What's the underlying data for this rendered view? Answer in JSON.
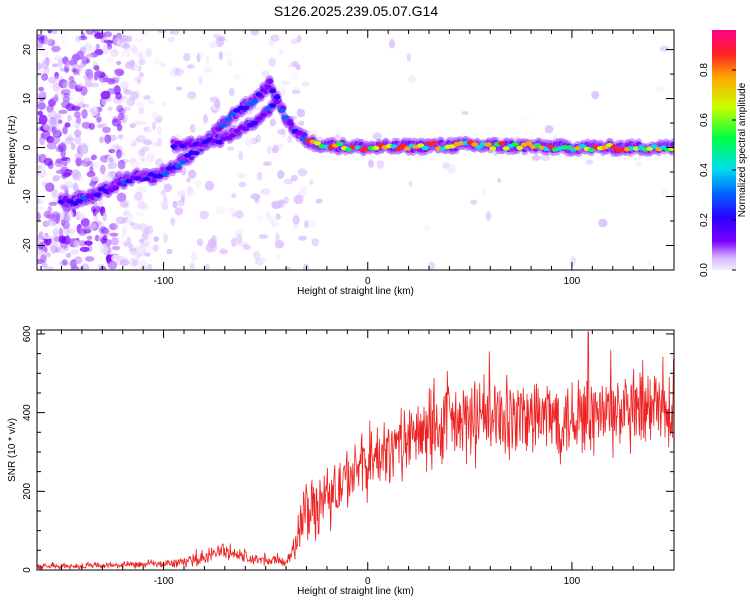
{
  "title": "S126.2025.239.05.07.G14",
  "colors": {
    "snr_line": "#ee2222",
    "axis": "#000000",
    "colormap": [
      "#f3eaff",
      "#d9b8ff",
      "#a85cff",
      "#7a00ff",
      "#2a00ff",
      "#0066ff",
      "#00ddee",
      "#00ff44",
      "#ccff00",
      "#ffaa00",
      "#ff2222",
      "#ff0088"
    ]
  },
  "chart_data": [
    {
      "type": "heatmap",
      "title": "",
      "xlabel": "Height of straight line (km)",
      "ylabel": "Frequency (Hz)",
      "xlim": [
        -162,
        150
      ],
      "ylim": [
        -25,
        24
      ],
      "xticks": [
        -100,
        0,
        100
      ],
      "yticks": [
        -20,
        -10,
        0,
        10,
        20
      ],
      "colorbar": {
        "label": "Normalized spectral amplitude",
        "range": [
          0,
          0.96
        ],
        "ticks": [
          "0.0",
          "0.2",
          "0.4",
          "0.6",
          "0.8"
        ]
      },
      "ridge": {
        "description": "dominant spectral line (frequency in Hz vs height in km)",
        "points": [
          {
            "x": -145,
            "y": -11
          },
          {
            "x": -135,
            "y": -10
          },
          {
            "x": -125,
            "y": -8
          },
          {
            "x": -115,
            "y": -6
          },
          {
            "x": -105,
            "y": -6
          },
          {
            "x": -95,
            "y": -4
          },
          {
            "x": -85,
            "y": -1
          },
          {
            "x": -75,
            "y": 3
          },
          {
            "x": -65,
            "y": 7
          },
          {
            "x": -55,
            "y": 10
          },
          {
            "x": -48,
            "y": 13
          },
          {
            "x": -40,
            "y": 6
          },
          {
            "x": -35,
            "y": 3
          },
          {
            "x": -28,
            "y": 1
          },
          {
            "x": -20,
            "y": 0.5
          },
          {
            "x": 0,
            "y": 0
          },
          {
            "x": 50,
            "y": 0.5
          },
          {
            "x": 100,
            "y": 0
          },
          {
            "x": 150,
            "y": 0
          }
        ]
      },
      "secondary_branch": [
        {
          "x": -95,
          "y": 0.5
        },
        {
          "x": -80,
          "y": 1
        },
        {
          "x": -70,
          "y": 2
        },
        {
          "x": -60,
          "y": 4
        },
        {
          "x": -50,
          "y": 7
        },
        {
          "x": -44,
          "y": 10
        }
      ]
    },
    {
      "type": "line",
      "title": "",
      "xlabel": "Height of straight line (km)",
      "ylabel": "SNR (10 * v/v)",
      "xlim": [
        -162,
        150
      ],
      "ylim": [
        0,
        610
      ],
      "xticks": [
        -100,
        0,
        100
      ],
      "yticks": [
        0,
        200,
        400,
        600
      ],
      "envelope": {
        "x": [
          -162,
          -140,
          -120,
          -100,
          -90,
          -80,
          -72,
          -65,
          -55,
          -45,
          -38,
          -33,
          -30,
          -25,
          -20,
          -15,
          -10,
          -5,
          0,
          10,
          20,
          30,
          40,
          60,
          80,
          100,
          120,
          140,
          150
        ],
        "mean": [
          8,
          10,
          12,
          15,
          20,
          30,
          50,
          40,
          25,
          22,
          25,
          110,
          160,
          160,
          180,
          210,
          230,
          250,
          270,
          300,
          330,
          350,
          370,
          380,
          385,
          390,
          395,
          395,
          395
        ],
        "spread": [
          8,
          10,
          10,
          12,
          15,
          20,
          30,
          25,
          18,
          15,
          20,
          90,
          100,
          100,
          100,
          100,
          100,
          100,
          100,
          100,
          110,
          120,
          130,
          130,
          130,
          130,
          130,
          130,
          130
        ]
      },
      "peak": {
        "x": 108,
        "y": 605
      }
    }
  ]
}
